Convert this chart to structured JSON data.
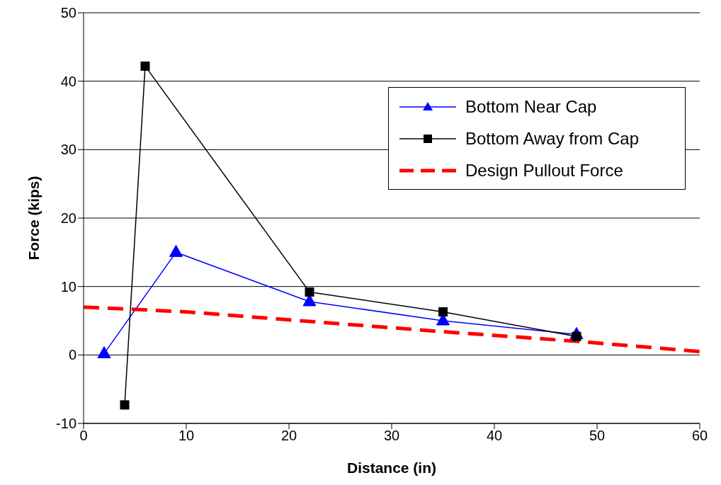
{
  "chart_data": {
    "type": "line",
    "xlabel": "Distance (in)",
    "ylabel": "Force (kips)",
    "xlim": [
      0,
      60
    ],
    "xticks": [
      0,
      10,
      20,
      30,
      40,
      50,
      60
    ],
    "ylim": [
      -10,
      50
    ],
    "yticks": [
      -10,
      0,
      10,
      20,
      30,
      40,
      50
    ],
    "grid": "y",
    "legend": "top right",
    "series": [
      {
        "name": "Bottom Near Cap",
        "color": "#0000ff",
        "marker": "triangle",
        "line_style": "solid",
        "x": [
          2,
          9,
          22,
          35,
          48
        ],
        "values": [
          0.2,
          15,
          7.8,
          5,
          3
        ]
      },
      {
        "name": "Bottom Away from Cap",
        "color": "#000000",
        "marker": "square",
        "line_style": "solid",
        "x": [
          4,
          6,
          22,
          35,
          48
        ],
        "values": [
          -7.3,
          42.2,
          9.2,
          6.3,
          2.7
        ]
      },
      {
        "name": "Design Pullout Force",
        "color": "#ff0000",
        "marker": "none",
        "line_style": "dashed",
        "x": [
          0,
          10,
          22,
          35,
          48,
          60
        ],
        "values": [
          7,
          6.3,
          4.9,
          3.4,
          2,
          0.5
        ]
      }
    ]
  }
}
